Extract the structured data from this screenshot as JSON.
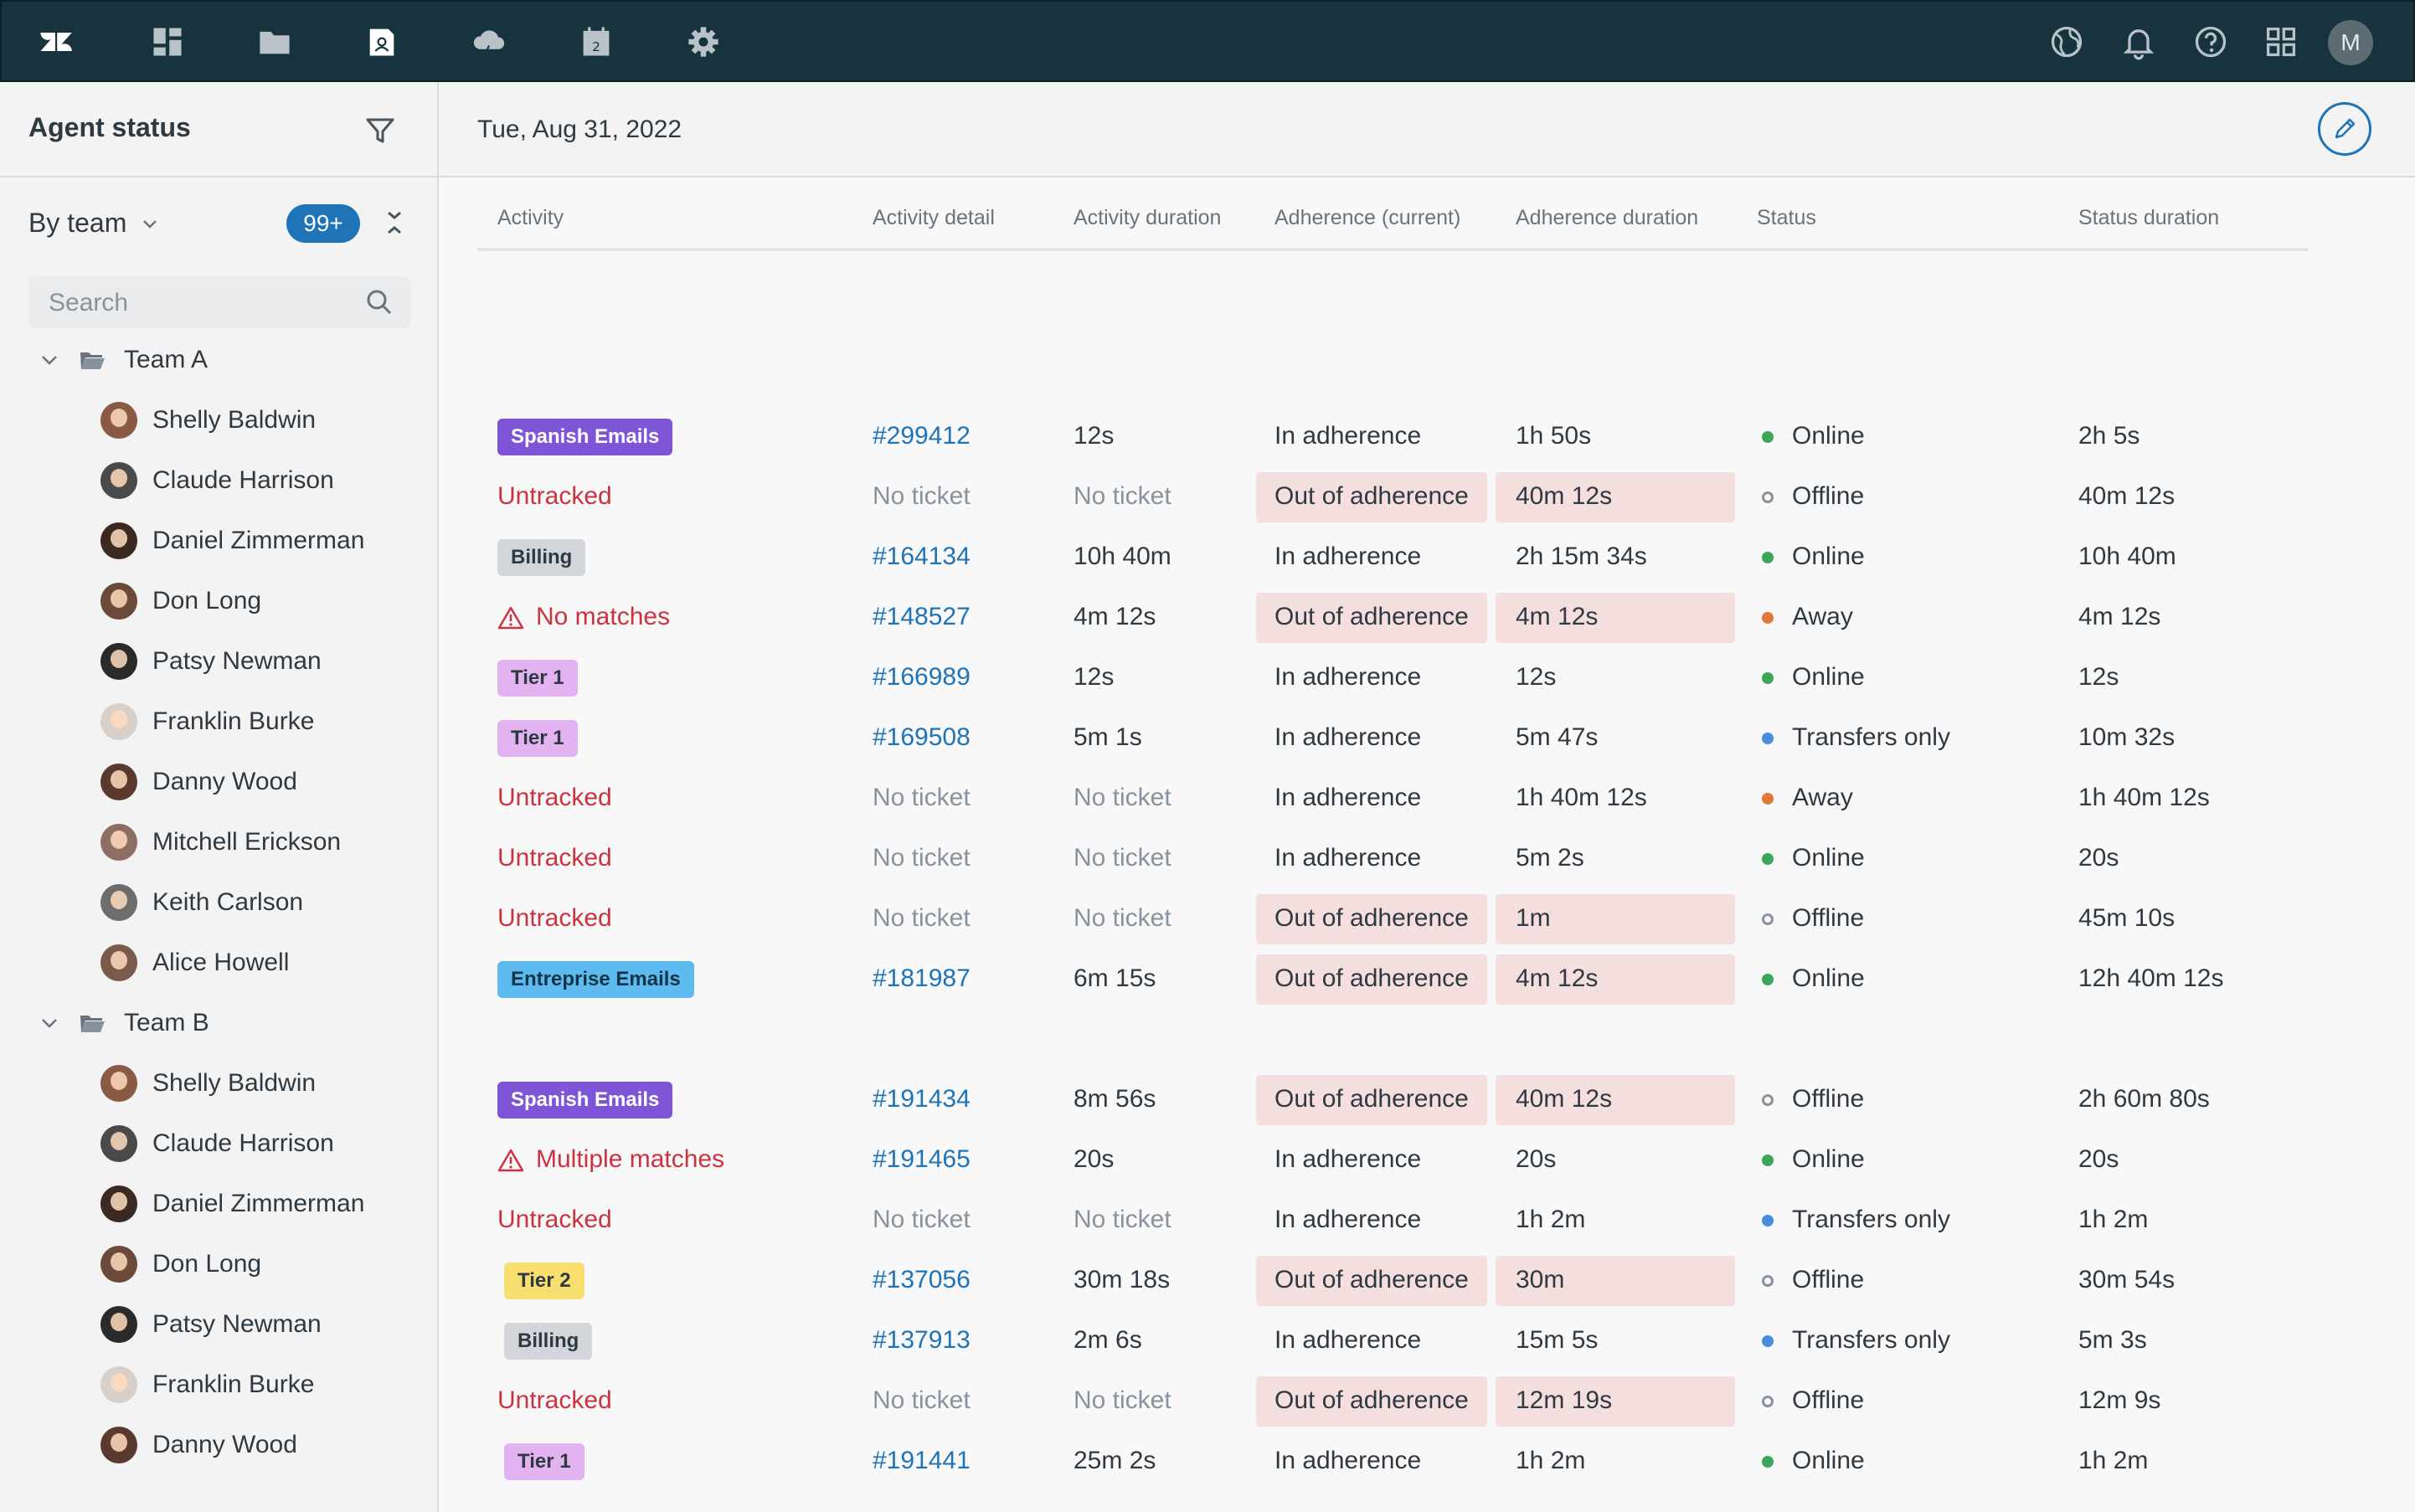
{
  "topbar": {
    "icons": [
      "zendesk-logo",
      "dashboard-icon",
      "folder-icon",
      "contacts-icon",
      "cloud-icon",
      "calendar-icon",
      "gear-icon",
      "globe-icon",
      "bell-icon",
      "help-icon",
      "apps-grid-icon"
    ],
    "avatar_initial": "M"
  },
  "sidebar": {
    "title": "Agent status",
    "group_by": "By team",
    "badge": "99+",
    "search_placeholder": "Search",
    "teams": [
      {
        "name": "Team A",
        "agents": [
          "Shelly Baldwin",
          "Claude Harrison",
          "Daniel Zimmerman",
          "Don Long",
          "Patsy Newman",
          "Franklin Burke",
          "Danny Wood",
          "Mitchell Erickson",
          "Keith Carlson",
          "Alice Howell"
        ]
      },
      {
        "name": "Team B",
        "agents": [
          "Shelly Baldwin",
          "Claude Harrison",
          "Daniel Zimmerman",
          "Don Long",
          "Patsy Newman",
          "Franklin Burke",
          "Danny Wood"
        ]
      }
    ]
  },
  "main": {
    "date": "Tue, Aug 31, 2022",
    "columns": [
      "Activity",
      "Activity detail",
      "Activity duration",
      "Adherence (current)",
      "Adherence duration",
      "Status",
      "Status duration"
    ],
    "colors": {
      "purple": "#7f55d8",
      "grey": "#d2d6da",
      "pink": "#e2b3f0",
      "blue": "#5ebbef",
      "yellow": "#f7df6f",
      "online": "#3ba55c",
      "away": "#e07a3a",
      "transfers": "#4a8de0"
    },
    "teamA_rows": [
      {
        "activity": "Spanish Emails",
        "kind": "tag",
        "tag_color": "purple",
        "detail": "#299412",
        "duration": "12s",
        "adherence": "In adherence",
        "adh_duration": "1h 50s",
        "status": "Online",
        "status_kind": "online",
        "status_duration": "2h 5s"
      },
      {
        "activity": "Untracked",
        "kind": "red",
        "detail": "No ticket",
        "duration": "No ticket",
        "adherence": "Out of adherence",
        "adh_duration": "40m 12s",
        "status": "Offline",
        "status_kind": "offline",
        "status_duration": "40m 12s"
      },
      {
        "activity": "Billing",
        "kind": "tag",
        "tag_color": "grey",
        "detail": "#164134",
        "duration": "10h 40m",
        "adherence": "In adherence",
        "adh_duration": "2h 15m 34s",
        "status": "Online",
        "status_kind": "online",
        "status_duration": "10h 40m"
      },
      {
        "activity": "No matches",
        "kind": "warn",
        "detail": "#148527",
        "duration": "4m 12s",
        "adherence": "Out of adherence",
        "adh_duration": "4m 12s",
        "status": "Away",
        "status_kind": "away",
        "status_duration": "4m 12s"
      },
      {
        "activity": "Tier 1",
        "kind": "tag",
        "tag_color": "pink",
        "detail": "#166989",
        "duration": "12s",
        "adherence": "In adherence",
        "adh_duration": "12s",
        "status": "Online",
        "status_kind": "online",
        "status_duration": "12s"
      },
      {
        "activity": "Tier 1",
        "kind": "tag",
        "tag_color": "pink",
        "detail": "#169508",
        "duration": "5m 1s",
        "adherence": "In adherence",
        "adh_duration": "5m 47s",
        "status": "Transfers only",
        "status_kind": "transfers",
        "status_duration": "10m 32s"
      },
      {
        "activity": "Untracked",
        "kind": "red",
        "detail": "No ticket",
        "duration": "No ticket",
        "adherence": "In adherence",
        "adh_duration": "1h 40m 12s",
        "status": "Away",
        "status_kind": "away",
        "status_duration": "1h 40m 12s"
      },
      {
        "activity": "Untracked",
        "kind": "red",
        "detail": "No ticket",
        "duration": "No ticket",
        "adherence": "In adherence",
        "adh_duration": "5m 2s",
        "status": "Online",
        "status_kind": "online",
        "status_duration": "20s"
      },
      {
        "activity": "Untracked",
        "kind": "red",
        "detail": "No ticket",
        "duration": "No ticket",
        "adherence": "Out of adherence",
        "adh_duration": "1m",
        "status": "Offline",
        "status_kind": "offline",
        "status_duration": "45m 10s"
      },
      {
        "activity": "Entreprise Emails",
        "kind": "tag",
        "tag_color": "blue",
        "detail": "#181987",
        "duration": "6m 15s",
        "adherence": "Out of adherence",
        "adh_duration": "4m 12s",
        "status": "Online",
        "status_kind": "online",
        "status_duration": "12h 40m 12s"
      }
    ],
    "teamB_rows": [
      {
        "activity": "Spanish Emails",
        "kind": "tag",
        "tag_color": "purple",
        "detail": "#191434",
        "duration": "8m 56s",
        "adherence": "Out of adherence",
        "adh_duration": "40m 12s",
        "status": "Offline",
        "status_kind": "offline",
        "status_duration": "2h 60m 80s"
      },
      {
        "activity": "Multiple matches",
        "kind": "warn",
        "detail": "#191465",
        "duration": "20s",
        "adherence": "In adherence",
        "adh_duration": "20s",
        "status": "Online",
        "status_kind": "online",
        "status_duration": "20s"
      },
      {
        "activity": "Untracked",
        "kind": "red",
        "detail": "No ticket",
        "duration": "No ticket",
        "adherence": "In adherence",
        "adh_duration": "1h 2m",
        "status": "Transfers only",
        "status_kind": "transfers",
        "status_duration": "1h 2m"
      },
      {
        "activity": "Tier 2",
        "kind": "tag",
        "tag_color": "yellow",
        "detail": "#137056",
        "duration": "30m 18s",
        "adherence": "Out of adherence",
        "adh_duration": "30m",
        "status": "Offline",
        "status_kind": "offline",
        "status_duration": "30m 54s"
      },
      {
        "activity": "Billing",
        "kind": "tag",
        "tag_color": "grey",
        "detail": "#137913",
        "duration": "2m 6s",
        "adherence": "In adherence",
        "adh_duration": "15m 5s",
        "status": "Transfers only",
        "status_kind": "transfers",
        "status_duration": "5m 3s"
      },
      {
        "activity": "Untracked",
        "kind": "red",
        "detail": "No ticket",
        "duration": "No ticket",
        "adherence": "Out of adherence",
        "adh_duration": "12m 19s",
        "status": "Offline",
        "status_kind": "offline",
        "status_duration": "12m 9s"
      },
      {
        "activity": "Tier 1",
        "kind": "tag",
        "tag_color": "pink",
        "detail": "#191441",
        "duration": "25m 2s",
        "adherence": "In adherence",
        "adh_duration": "1h 2m",
        "status": "Online",
        "status_kind": "online",
        "status_duration": "1h 2m"
      }
    ]
  }
}
